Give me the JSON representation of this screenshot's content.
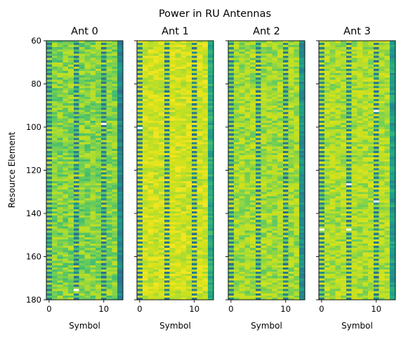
{
  "figure": {
    "suptitle": "Power in RU Antennas",
    "ylabel": "Resource Element",
    "xlabel": "Symbol"
  },
  "chart_data": {
    "type": "heatmap",
    "title": "Power in RU Antennas",
    "colormap": "viridis",
    "shared_y": true,
    "ylim": [
      180,
      60
    ],
    "yticks": [
      60,
      80,
      100,
      120,
      140,
      160,
      180
    ],
    "xticks": [
      0,
      10
    ],
    "x_range": [
      0,
      13
    ],
    "xlabel": "Symbol",
    "ylabel": "Resource Element",
    "symbols": 14,
    "resource_elements": [
      60,
      179
    ],
    "panels": [
      {
        "title": "Ant 0",
        "base_level": 0.73,
        "pilot_columns": [
          0,
          5,
          10
        ],
        "low_column": 13,
        "low_level": 0.42,
        "hot_cells": [
          [
            10,
            98
          ],
          [
            5,
            175
          ]
        ]
      },
      {
        "title": "Ant 1",
        "base_level": 0.87,
        "pilot_columns": [
          0,
          5,
          10
        ],
        "low_column": 13,
        "low_level": 0.55,
        "hot_cells": [
          [
            0,
            100
          ]
        ]
      },
      {
        "title": "Ant 2",
        "base_level": 0.78,
        "pilot_columns": [
          0,
          5,
          10
        ],
        "low_column": 13,
        "low_level": 0.45,
        "hot_cells": []
      },
      {
        "title": "Ant 3",
        "base_level": 0.8,
        "pilot_columns": [
          0,
          5,
          10
        ],
        "low_column": 13,
        "low_level": 0.5,
        "hot_cells": [
          [
            10,
            92
          ],
          [
            5,
            126
          ],
          [
            10,
            134
          ],
          [
            5,
            147
          ],
          [
            0,
            147
          ]
        ]
      }
    ]
  }
}
